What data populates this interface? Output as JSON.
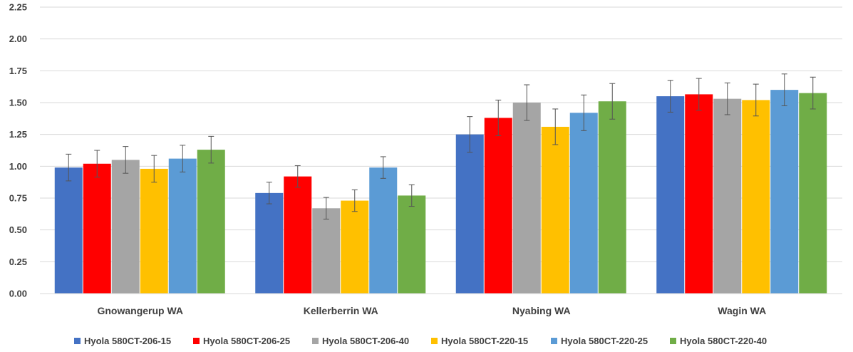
{
  "chart_data": {
    "type": "bar",
    "title": "",
    "xlabel": "",
    "ylabel": "",
    "ylim": [
      0,
      2.25
    ],
    "yticks": [
      "0.00",
      "0.25",
      "0.50",
      "0.75",
      "1.00",
      "1.25",
      "1.50",
      "1.75",
      "2.00",
      "2.25"
    ],
    "grid": true,
    "legend_position": "bottom",
    "error_bars": true,
    "categories": [
      "Gnowangerup WA",
      "Kellerberrin WA",
      "Nyabing WA",
      "Wagin WA"
    ],
    "series": [
      {
        "name": "Hyola 580CT-206-15",
        "color": "#4472C4",
        "values": [
          0.99,
          0.79,
          1.25,
          1.55
        ],
        "errors": [
          0.105,
          0.085,
          0.14,
          0.125
        ]
      },
      {
        "name": "Hyola 580CT-206-25",
        "color": "#FF0000",
        "values": [
          1.02,
          0.92,
          1.38,
          1.565
        ],
        "errors": [
          0.105,
          0.085,
          0.14,
          0.125
        ]
      },
      {
        "name": "Hyola 580CT-206-40",
        "color": "#A5A5A5",
        "values": [
          1.05,
          0.67,
          1.5,
          1.53
        ],
        "errors": [
          0.105,
          0.085,
          0.14,
          0.125
        ]
      },
      {
        "name": "Hyola 580CT-220-15",
        "color": "#FFC000",
        "values": [
          0.98,
          0.73,
          1.31,
          1.52
        ],
        "errors": [
          0.105,
          0.085,
          0.14,
          0.125
        ]
      },
      {
        "name": "Hyola 580CT-220-25",
        "color": "#5B9BD5",
        "values": [
          1.06,
          0.99,
          1.42,
          1.6
        ],
        "errors": [
          0.105,
          0.085,
          0.14,
          0.125
        ]
      },
      {
        "name": "Hyola 580CT-220-40",
        "color": "#70AD47",
        "values": [
          1.13,
          0.77,
          1.51,
          1.575
        ],
        "errors": [
          0.105,
          0.085,
          0.14,
          0.125
        ]
      }
    ]
  }
}
